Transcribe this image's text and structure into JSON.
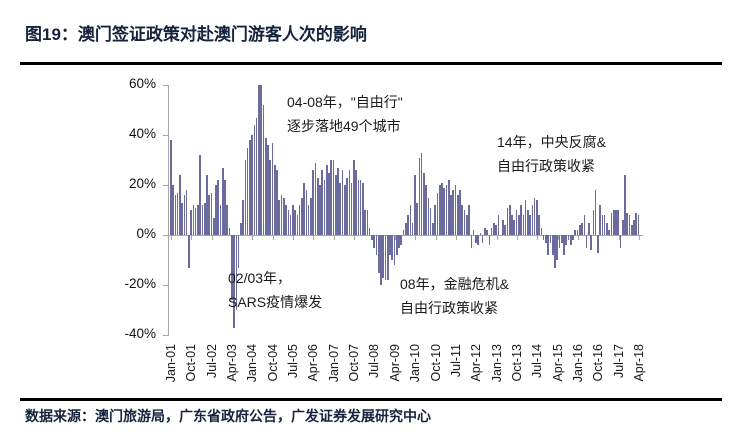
{
  "header": {
    "title": "图19：澳门签证政策对赴澳门游客人次的影响",
    "title_color": "#15233C"
  },
  "footer": {
    "text": "数据来源：澳门旅游局，广东省政府公告，广发证券发展研究中心"
  },
  "chart_data": {
    "type": "bar",
    "unit": "%",
    "ylim": [
      -40,
      60
    ],
    "grid": "off",
    "bar_color": "#6B6B9D",
    "axis_color": "#a6a6a6",
    "y_ticks": [
      "60%",
      "40%",
      "20%",
      "0%",
      "-20%",
      "-40%"
    ],
    "x_start": "Jan-01",
    "x_end": "Apr-18",
    "x_frequency": "monthly",
    "x_tick_interval_months": 9,
    "x_tick_labels": [
      "Jan-01",
      "Oct-01",
      "Jul-02",
      "Apr-03",
      "Jan-04",
      "Oct-04",
      "Jul-05",
      "Apr-06",
      "Jan-07",
      "Oct-07",
      "Jul-08",
      "Apr-09",
      "Jan-10",
      "Oct-10",
      "Jul-11",
      "Apr-12",
      "Jan-13",
      "Oct-13",
      "Jul-14",
      "Apr-15",
      "Jan-16",
      "Oct-16",
      "Jul-17",
      "Apr-18"
    ],
    "values": [
      38,
      20,
      16,
      17,
      24,
      13,
      16,
      18,
      -13,
      10,
      12,
      11,
      12,
      32,
      12,
      13,
      24,
      16,
      17,
      7,
      20,
      22,
      12,
      27,
      22,
      12,
      3,
      -26,
      -37,
      -30,
      -13,
      5,
      14,
      30,
      35,
      38,
      40,
      44,
      47,
      60,
      60,
      52,
      39,
      36,
      30,
      37,
      28,
      26,
      14,
      16,
      15,
      12,
      10,
      8,
      12,
      10,
      8,
      12,
      15,
      21,
      18,
      12,
      15,
      26,
      29,
      23,
      20,
      26,
      22,
      28,
      25,
      30,
      30,
      24,
      27,
      21,
      26,
      20,
      23,
      26,
      21,
      30,
      26,
      22,
      22,
      21,
      10,
      10,
      3,
      -2,
      -5,
      -8,
      -15,
      -20,
      -17,
      -18,
      -18,
      -8,
      -10,
      -12,
      -8,
      -5,
      -4,
      2,
      5,
      8,
      12,
      5,
      24,
      13,
      31,
      33,
      25,
      20,
      15,
      11,
      5,
      12,
      17,
      20,
      21,
      19,
      20,
      22,
      16,
      18,
      20,
      16,
      18,
      12,
      10,
      8,
      12,
      -5,
      2,
      -3,
      -4,
      1,
      -3,
      3,
      2,
      -4,
      3,
      5,
      4,
      8,
      0,
      6,
      4,
      11,
      12,
      8,
      6,
      10,
      8,
      12,
      8,
      14,
      10,
      8,
      12,
      15,
      14,
      8,
      3,
      -2,
      -3,
      -8,
      -3,
      -8,
      -13,
      -10,
      -5,
      -3,
      -8,
      -4,
      -2,
      -4,
      -2,
      2,
      2,
      4,
      5,
      8,
      -5,
      5,
      -6,
      10,
      18,
      -7,
      12,
      8,
      8,
      5,
      2,
      9,
      10,
      10,
      10,
      -5,
      6,
      24,
      9,
      8,
      4,
      6,
      9,
      8
    ],
    "annotations": [
      {
        "lines": [
          "04-08年，\"自由行\"",
          "逐步落地49个城市"
        ]
      },
      {
        "lines": [
          "14年，中央反腐&",
          "自由行政策收紧"
        ]
      },
      {
        "lines": [
          "02/03年，",
          "SARS疫情爆发"
        ]
      },
      {
        "lines": [
          "08年，金融危机&",
          "自由行政策收紧"
        ]
      }
    ]
  }
}
